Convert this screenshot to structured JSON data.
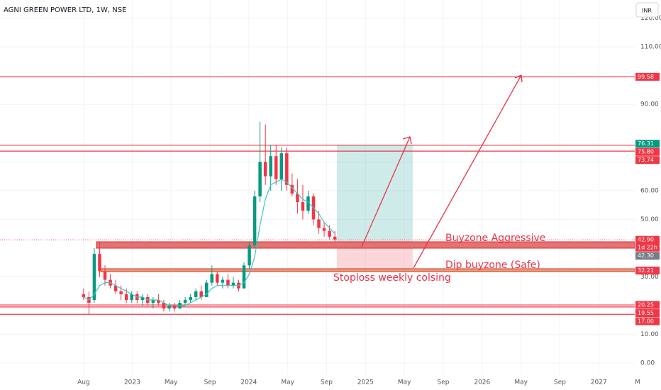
{
  "chart_data": {
    "type": "candlestick",
    "title": "AGNI GREEN POWER LTD, 1W, NSE",
    "currency": "INR",
    "up_color": "#089981",
    "down_color": "#f23645",
    "ma_color": "#3cc6c0",
    "xlim": [
      -1.6,
      63.7
    ],
    "ylim": [
      -3.9,
      126.3
    ],
    "xticks": [
      {
        "value": 7,
        "label": "Aug"
      },
      {
        "value": 12,
        "label": "2023"
      },
      {
        "value": 16,
        "label": "May"
      },
      {
        "value": 20,
        "label": "Sep"
      },
      {
        "value": 24,
        "label": "2024"
      },
      {
        "value": 28,
        "label": "May"
      },
      {
        "value": 32,
        "label": "Sep"
      },
      {
        "value": 36,
        "label": "2025"
      },
      {
        "value": 40,
        "label": "May"
      },
      {
        "value": 44,
        "label": "Sep"
      },
      {
        "value": 48,
        "label": "2026"
      },
      {
        "value": 52,
        "label": "May"
      },
      {
        "value": 56,
        "label": "Sep"
      },
      {
        "value": 60,
        "label": "2027"
      },
      {
        "value": 64,
        "label": "M"
      }
    ],
    "yticks": [
      {
        "value": 0,
        "label": "0.00"
      },
      {
        "value": 10,
        "label": "10.00"
      },
      {
        "value": 30,
        "label": "30.00"
      },
      {
        "value": 50,
        "label": "50.00"
      },
      {
        "value": 60,
        "label": "60.00"
      },
      {
        "value": 70,
        "label": "70.00"
      },
      {
        "value": 90,
        "label": "90.00"
      },
      {
        "value": 110,
        "label": "110.00"
      },
      {
        "value": 120,
        "label": "120.00"
      }
    ],
    "grid": true,
    "x": [
      7.0,
      7.55,
      8.1,
      8.65,
      9.2,
      9.75,
      10.3,
      10.85,
      11.4,
      11.95,
      12.5,
      13.05,
      13.6,
      14.15,
      14.7,
      15.25,
      15.8,
      16.35,
      16.9,
      17.45,
      18.0,
      18.55,
      19.1,
      19.65,
      20.2,
      20.75,
      21.3,
      21.85,
      22.4,
      22.95,
      23.5,
      24.05,
      24.6,
      25.15,
      25.7,
      26.25,
      26.8,
      27.35,
      27.9,
      28.45,
      29.0,
      29.55,
      30.1,
      30.65,
      31.2,
      31.75,
      32.3,
      32.85
    ],
    "open": [
      24,
      23,
      22,
      38,
      32,
      29,
      27,
      25,
      24,
      22,
      24,
      22,
      23,
      21,
      22,
      21,
      19,
      20,
      19,
      21,
      22,
      23,
      25,
      23,
      28,
      31,
      28,
      29,
      27,
      28,
      26,
      34,
      41,
      58,
      70,
      65,
      72,
      64,
      73,
      62,
      59,
      56,
      53,
      58,
      50,
      47,
      46,
      44
    ],
    "high": [
      26,
      25,
      40,
      42,
      34,
      31,
      29,
      27,
      26,
      25,
      25,
      24,
      24,
      23,
      24,
      22,
      21,
      21,
      22,
      23,
      24,
      26,
      27,
      29,
      34,
      32,
      30,
      31,
      30,
      29,
      35,
      42,
      60,
      84,
      83,
      76,
      76,
      75,
      75,
      66,
      64,
      62,
      60,
      59,
      53,
      49,
      48,
      46
    ],
    "low": [
      22,
      17,
      21,
      30,
      27,
      26,
      24,
      22,
      21,
      21,
      21,
      20,
      20,
      19,
      20,
      18,
      18,
      18,
      19,
      20,
      21,
      22,
      22,
      23,
      27,
      27,
      26,
      26,
      26,
      25,
      26,
      33,
      40,
      56,
      62,
      60,
      62,
      60,
      60,
      58,
      52,
      50,
      52,
      48,
      45,
      44,
      43,
      42
    ],
    "close": [
      23,
      21,
      38,
      32,
      29,
      27,
      25,
      24,
      22,
      24,
      22,
      23,
      21,
      22,
      21,
      19,
      20,
      19,
      21,
      22,
      23,
      25,
      23,
      28,
      31,
      28,
      29,
      27,
      28,
      26,
      34,
      41,
      58,
      70,
      65,
      72,
      64,
      73,
      62,
      59,
      56,
      53,
      58,
      50,
      47,
      46,
      44,
      43
    ],
    "ma": [
      23,
      22,
      24,
      27,
      28,
      28,
      27,
      26,
      25,
      24,
      23,
      23,
      22,
      22,
      22,
      21,
      20,
      20,
      20,
      20,
      21,
      22,
      23,
      24,
      26,
      27,
      27,
      27,
      27,
      27,
      28,
      31,
      37,
      48,
      57,
      62,
      63,
      64,
      63,
      61,
      59,
      57,
      56,
      54,
      52,
      49,
      47,
      45
    ],
    "price_markers": [
      {
        "value": 99.58,
        "label": "99.58",
        "color": "#f23645",
        "line": "solid"
      },
      {
        "value": 76.31,
        "label": "76.31",
        "color": "#089981",
        "line": "none"
      },
      {
        "value": 75.8,
        "label": "75.80",
        "color": "#f23645",
        "line": "solid"
      },
      {
        "value": 73.74,
        "label": "73.74",
        "color": "#f23645",
        "line": "solid"
      },
      {
        "value": 42.9,
        "label": "42.90",
        "color": "#f23645",
        "line": "dotted"
      },
      {
        "value": 42.3,
        "label": "42.30",
        "color": "#787b86",
        "line": "none"
      },
      {
        "value": 32.21,
        "label": "32.21",
        "color": "#f23645",
        "line": "none"
      },
      {
        "value": 20.25,
        "label": "20.25",
        "color": "#f23645",
        "line": "solid"
      },
      {
        "value": 19.55,
        "label": "19.55",
        "color": "#f23645",
        "line": "solid"
      },
      {
        "value": 17.0,
        "label": "17.00",
        "color": "#f23645",
        "line": "solid"
      }
    ],
    "countdown": "1d 22h",
    "annotations": [
      "Buyzone Aggressive",
      "Dip buyzone (Safe)",
      "Stoploss weekly colsing"
    ]
  }
}
